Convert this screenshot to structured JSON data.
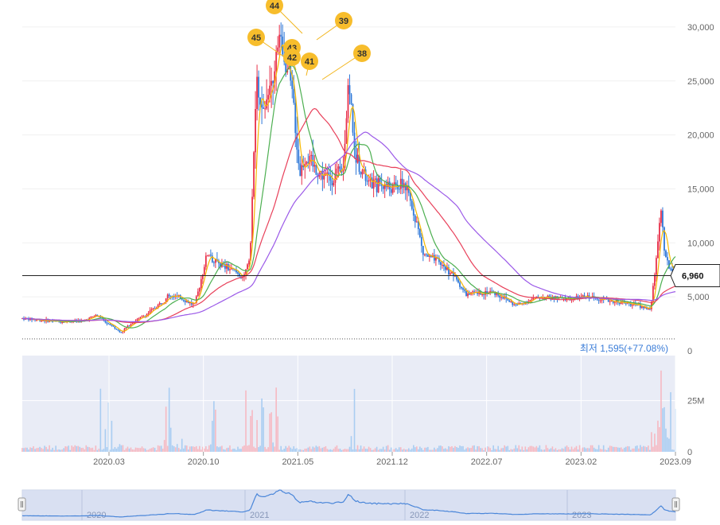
{
  "chart_data": {
    "type": "candlestick",
    "price_axis": {
      "ticks": [
        0,
        5000,
        10000,
        15000,
        20000,
        25000,
        30000
      ],
      "tick_labels": [
        "0",
        "5,000",
        "10,000",
        "15,000",
        "20,000",
        "25,000",
        "30,000"
      ],
      "range": [
        0,
        32500
      ]
    },
    "volume_axis": {
      "ticks": [
        0,
        25000000
      ],
      "tick_labels": [
        "0",
        "25M"
      ],
      "range": [
        0,
        47000000
      ]
    },
    "time_axis": {
      "labels": [
        "2020.03",
        "2020.10",
        "2021.05",
        "2021.12",
        "2022.07",
        "2023.02",
        "2023.09"
      ]
    },
    "current_price": {
      "value": 6960,
      "label": "6,960"
    },
    "minimum": {
      "value": 1595,
      "label": "최저 1,595(+77.08%)"
    },
    "peak_markers": [
      {
        "label": "45",
        "x_month": 14.8,
        "price": 26500
      },
      {
        "label": "44",
        "x_month": 16.2,
        "price": 28500
      },
      {
        "label": "43",
        "x_month": 16.3,
        "price": 27000
      },
      {
        "label": "42",
        "x_month": 16.4,
        "price": 25500
      },
      {
        "label": "41",
        "x_month": 16.9,
        "price": 25500
      },
      {
        "label": "39",
        "x_month": 17.2,
        "price": 28000
      },
      {
        "label": "38",
        "x_month": 17.2,
        "price": 24500
      }
    ],
    "price_keypoints": [
      [
        0,
        3000
      ],
      [
        3,
        2700
      ],
      [
        5,
        2800
      ],
      [
        6,
        3300
      ],
      [
        7,
        2500
      ],
      [
        8,
        1700
      ],
      [
        9,
        2700
      ],
      [
        10,
        3300
      ],
      [
        11,
        4200
      ],
      [
        12,
        5200
      ],
      [
        13,
        4800
      ],
      [
        14,
        4200
      ],
      [
        15,
        9000
      ],
      [
        16,
        8000
      ],
      [
        17,
        7500
      ],
      [
        18,
        6800
      ],
      [
        18.5,
        9000
      ],
      [
        19,
        25000
      ],
      [
        19.5,
        22000
      ],
      [
        20,
        25000
      ],
      [
        20.5,
        26500
      ],
      [
        21,
        29000
      ],
      [
        21.5,
        26000
      ],
      [
        22,
        23000
      ],
      [
        22.5,
        16500
      ],
      [
        23,
        18000
      ],
      [
        24,
        16500
      ],
      [
        25,
        16000
      ],
      [
        26,
        16500
      ],
      [
        26.5,
        25000
      ],
      [
        27,
        18500
      ],
      [
        28,
        15500
      ],
      [
        29,
        15500
      ],
      [
        30,
        15000
      ],
      [
        31,
        15500
      ],
      [
        32,
        12000
      ],
      [
        32.5,
        9000
      ],
      [
        34,
        8000
      ],
      [
        35,
        7000
      ],
      [
        36,
        5200
      ],
      [
        38,
        5500
      ],
      [
        39,
        5000
      ],
      [
        40,
        4200
      ],
      [
        42,
        5000
      ],
      [
        44,
        4800
      ],
      [
        46,
        5000
      ],
      [
        48,
        4600
      ],
      [
        50,
        4200
      ],
      [
        51,
        3800
      ],
      [
        51.5,
        9500
      ],
      [
        51.8,
        13000
      ],
      [
        52.2,
        8500
      ],
      [
        53,
        6960
      ]
    ],
    "moving_averages": [
      {
        "color": "#f5b800",
        "period": 5
      },
      {
        "color": "#4caf50",
        "period": 20
      },
      {
        "color": "#e8405a",
        "period": 60
      },
      {
        "color": "#9b59e8",
        "period": 120
      }
    ],
    "colors": {
      "up": "#e8304a",
      "down": "#2f78d8",
      "volume_up": "#f6b9c2",
      "volume_down": "#a9cdf2"
    }
  },
  "navigator": {
    "year_labels": [
      "2020",
      "2021",
      "2022",
      "2023"
    ]
  }
}
